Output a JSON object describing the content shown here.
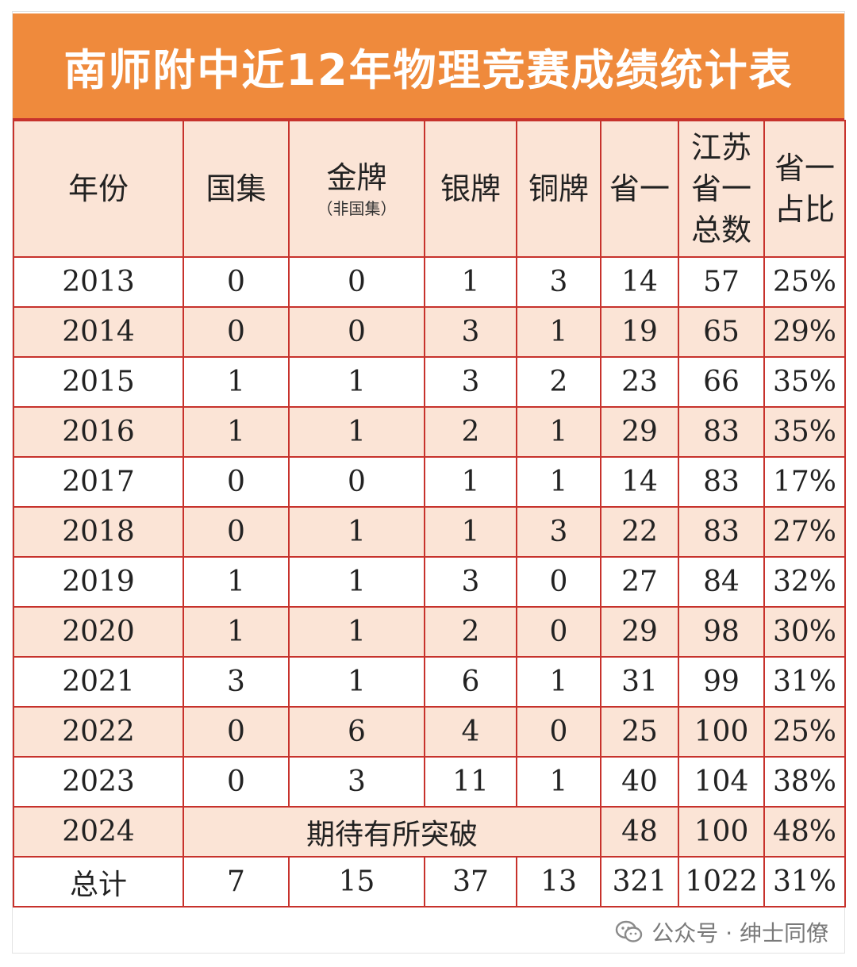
{
  "title": "南师附中近12年物理竞赛成绩统计表",
  "headers": {
    "year": "年份",
    "national_team": "国集",
    "gold": "金牌",
    "gold_sub": "（非国集）",
    "silver": "银牌",
    "bronze": "铜牌",
    "provincial_first": "省一",
    "jiangsu_total_l1": "江苏",
    "jiangsu_total_l2": "省一",
    "jiangsu_total_l3": "总数",
    "ratio_l1": "省一",
    "ratio_l2": "占比"
  },
  "rows": [
    {
      "year": "2013",
      "national": "0",
      "gold": "0",
      "silver": "1",
      "bronze": "3",
      "prov1": "14",
      "total": "57",
      "ratio": "25%"
    },
    {
      "year": "2014",
      "national": "0",
      "gold": "0",
      "silver": "3",
      "bronze": "1",
      "prov1": "19",
      "total": "65",
      "ratio": "29%"
    },
    {
      "year": "2015",
      "national": "1",
      "gold": "1",
      "silver": "3",
      "bronze": "2",
      "prov1": "23",
      "total": "66",
      "ratio": "35%"
    },
    {
      "year": "2016",
      "national": "1",
      "gold": "1",
      "silver": "2",
      "bronze": "1",
      "prov1": "29",
      "total": "83",
      "ratio": "35%"
    },
    {
      "year": "2017",
      "national": "0",
      "gold": "0",
      "silver": "1",
      "bronze": "1",
      "prov1": "14",
      "total": "83",
      "ratio": "17%"
    },
    {
      "year": "2018",
      "national": "0",
      "gold": "1",
      "silver": "1",
      "bronze": "3",
      "prov1": "22",
      "total": "83",
      "ratio": "27%"
    },
    {
      "year": "2019",
      "national": "1",
      "gold": "1",
      "silver": "3",
      "bronze": "0",
      "prov1": "27",
      "total": "84",
      "ratio": "32%"
    },
    {
      "year": "2020",
      "national": "1",
      "gold": "1",
      "silver": "2",
      "bronze": "0",
      "prov1": "29",
      "total": "98",
      "ratio": "30%"
    },
    {
      "year": "2021",
      "national": "3",
      "gold": "1",
      "silver": "6",
      "bronze": "1",
      "prov1": "31",
      "total": "99",
      "ratio": "31%"
    },
    {
      "year": "2022",
      "national": "0",
      "gold": "6",
      "silver": "4",
      "bronze": "0",
      "prov1": "25",
      "total": "100",
      "ratio": "25%"
    },
    {
      "year": "2023",
      "national": "0",
      "gold": "3",
      "silver": "11",
      "bronze": "1",
      "prov1": "40",
      "total": "104",
      "ratio": "38%"
    }
  ],
  "row_2024": {
    "year": "2024",
    "note": "期待有所突破",
    "prov1": "48",
    "total": "100",
    "ratio": "48%"
  },
  "totals": {
    "label": "总计",
    "national": "7",
    "gold": "15",
    "silver": "37",
    "bronze": "13",
    "prov1": "321",
    "total": "1022",
    "ratio": "31%"
  },
  "watermark": {
    "text": "公众号 · 绅士同僚",
    "icon": "wechat-icon"
  },
  "colors": {
    "title_bg": "#ef8a3c",
    "border": "#c7322c",
    "shade": "#fbe4d6"
  }
}
